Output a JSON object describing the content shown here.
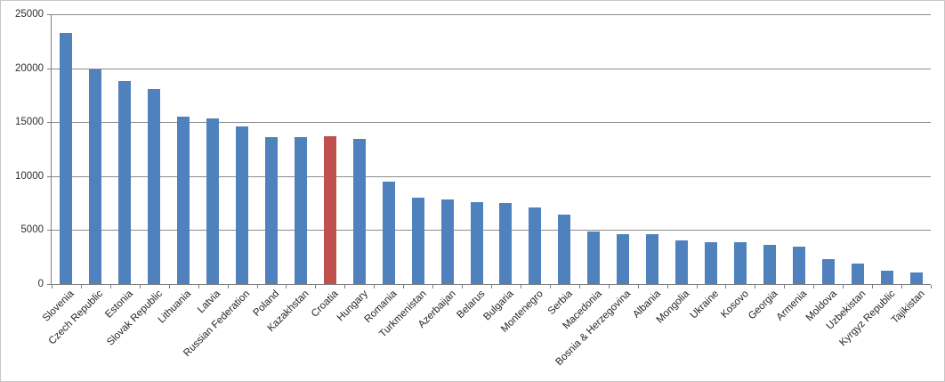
{
  "chart_data": {
    "type": "bar",
    "title": "",
    "xlabel": "",
    "ylabel": "",
    "categories": [
      "Slovenia",
      "Czech Republic",
      "Estonia",
      "Slovak Republic",
      "Lithuania",
      "Latvia",
      "Russian Federation",
      "Poland",
      "Kazakhstan",
      "Croatia",
      "Hungary",
      "Romania",
      "Turkmenistan",
      "Azerbaijan",
      "Belarus",
      "Bulgaria",
      "Montenegro",
      "Serbia",
      "Macedonia",
      "Bosnia & Herzegovina",
      "Albania",
      "Mongolia",
      "Ukraine",
      "Kosovo",
      "Georgia",
      "Armenia",
      "Moldova",
      "Uzbekistan",
      "Kyrgyz Republic",
      "Tajikistan"
    ],
    "values": [
      23300,
      19900,
      18800,
      18050,
      15500,
      15350,
      14600,
      13650,
      13650,
      13700,
      13450,
      9450,
      8000,
      7800,
      7600,
      7500,
      7100,
      6400,
      4900,
      4600,
      4600,
      4050,
      3900,
      3900,
      3650,
      3500,
      2300,
      1900,
      1250,
      1050
    ],
    "highlight_category": "Croatia",
    "bar_color": "#4F81BD",
    "highlight_color": "#C0504D",
    "ylim": [
      0,
      25000
    ],
    "ytick_interval": 5000,
    "ytick_labels": [
      "0",
      "5000",
      "10000",
      "15000",
      "20000",
      "25000"
    ],
    "grid": "horizontal-on",
    "legend": "none"
  },
  "colors": {
    "gridline": "#8C8C8C",
    "axis": "#7F7F7F",
    "text": "#262626",
    "frame_border": "#C8C8C8",
    "background": "#FFFFFF"
  }
}
